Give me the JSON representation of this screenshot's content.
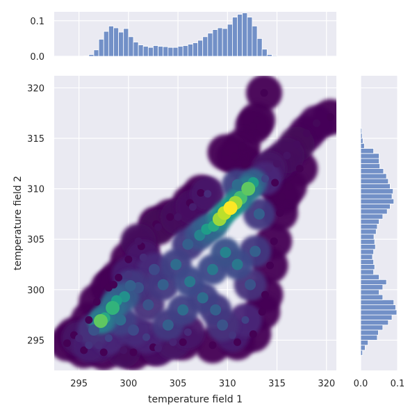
{
  "chart_data": {
    "type": "scatter",
    "subtype": "jointplot-density-scatter-with-marginal-histograms",
    "xlabel": "temperature field 1",
    "ylabel": "temperature field 2",
    "xlim": [
      292.5,
      321.0
    ],
    "ylim": [
      292.0,
      321.2
    ],
    "grid": true,
    "background": "#eaeaf2",
    "grid_color": "#ffffff",
    "hist_color": "#7290c7",
    "hist_edge_color": "#ffffff",
    "colormap": "viridis",
    "x_ticks": [
      {
        "value": 295,
        "label": "295"
      },
      {
        "value": 300,
        "label": "300"
      },
      {
        "value": 305,
        "label": "305"
      },
      {
        "value": 310,
        "label": "310"
      },
      {
        "value": 315,
        "label": "315"
      },
      {
        "value": 320,
        "label": "320"
      }
    ],
    "y_ticks": [
      {
        "value": 295,
        "label": "295"
      },
      {
        "value": 300,
        "label": "300"
      },
      {
        "value": 305,
        "label": "305"
      },
      {
        "value": 310,
        "label": "310"
      },
      {
        "value": 315,
        "label": "315"
      },
      {
        "value": 320,
        "label": "320"
      }
    ],
    "marginal_x": {
      "ticks": [
        {
          "value": 0.0,
          "label": "0.0"
        },
        {
          "value": 0.1,
          "label": "0.1"
        }
      ],
      "ylim": [
        0,
        0.125
      ],
      "bin_start": 295.5,
      "bin_width": 0.5,
      "densities": [
        0.001,
        0.005,
        0.018,
        0.048,
        0.07,
        0.085,
        0.08,
        0.068,
        0.078,
        0.055,
        0.04,
        0.032,
        0.028,
        0.025,
        0.03,
        0.028,
        0.027,
        0.025,
        0.025,
        0.028,
        0.03,
        0.034,
        0.038,
        0.045,
        0.055,
        0.065,
        0.075,
        0.08,
        0.078,
        0.09,
        0.11,
        0.118,
        0.122,
        0.11,
        0.085,
        0.05,
        0.02,
        0.005,
        0.002
      ]
    },
    "marginal_y": {
      "ticks": [
        {
          "value": 0.0,
          "label": "0.0"
        },
        {
          "value": 0.1,
          "label": "0.1"
        }
      ],
      "xlim": [
        0,
        0.1
      ],
      "bin_start": 293.5,
      "bin_width": 0.5,
      "densities": [
        0.005,
        0.012,
        0.02,
        0.045,
        0.048,
        0.06,
        0.075,
        0.085,
        0.098,
        0.095,
        0.09,
        0.06,
        0.05,
        0.06,
        0.07,
        0.05,
        0.035,
        0.038,
        0.035,
        0.032,
        0.035,
        0.04,
        0.038,
        0.036,
        0.042,
        0.045,
        0.05,
        0.06,
        0.072,
        0.08,
        0.09,
        0.085,
        0.088,
        0.08,
        0.075,
        0.07,
        0.062,
        0.052,
        0.05,
        0.05,
        0.035,
        0.01,
        0.006,
        0.004,
        0.003
      ]
    },
    "points": [
      {
        "x": 293.8,
        "y": 294.7,
        "d": 0.0
      },
      {
        "x": 295.0,
        "y": 295.2,
        "d": 0.1
      },
      {
        "x": 296.0,
        "y": 294.5,
        "d": 0.15
      },
      {
        "x": 296.5,
        "y": 296.0,
        "d": 0.25
      },
      {
        "x": 297.2,
        "y": 296.9,
        "d": 0.75
      },
      {
        "x": 297.6,
        "y": 297.2,
        "d": 0.6
      },
      {
        "x": 298.4,
        "y": 298.2,
        "d": 0.65
      },
      {
        "x": 298.8,
        "y": 298.9,
        "d": 0.55
      },
      {
        "x": 299.6,
        "y": 299.3,
        "d": 0.5
      },
      {
        "x": 300.2,
        "y": 300.4,
        "d": 0.3
      },
      {
        "x": 299.2,
        "y": 297.0,
        "d": 0.35
      },
      {
        "x": 300.5,
        "y": 296.0,
        "d": 0.22
      },
      {
        "x": 301.8,
        "y": 295.3,
        "d": 0.18
      },
      {
        "x": 303.0,
        "y": 294.2,
        "d": 0.08
      },
      {
        "x": 304.5,
        "y": 294.8,
        "d": 0.1
      },
      {
        "x": 306.0,
        "y": 295.8,
        "d": 0.12
      },
      {
        "x": 302.0,
        "y": 298.5,
        "d": 0.25
      },
      {
        "x": 303.5,
        "y": 300.5,
        "d": 0.3
      },
      {
        "x": 302.6,
        "y": 302.0,
        "d": 0.22
      },
      {
        "x": 301.5,
        "y": 303.2,
        "d": 0.12
      },
      {
        "x": 301.0,
        "y": 304.8,
        "d": 0.05
      },
      {
        "x": 303.0,
        "y": 306.2,
        "d": 0.03
      },
      {
        "x": 305.0,
        "y": 307.2,
        "d": 0.05
      },
      {
        "x": 306.0,
        "y": 304.5,
        "d": 0.3
      },
      {
        "x": 307.2,
        "y": 305.4,
        "d": 0.45
      },
      {
        "x": 307.9,
        "y": 306.0,
        "d": 0.55
      },
      {
        "x": 308.6,
        "y": 306.3,
        "d": 0.6
      },
      {
        "x": 309.2,
        "y": 307.0,
        "d": 0.85
      },
      {
        "x": 309.7,
        "y": 307.6,
        "d": 0.9
      },
      {
        "x": 310.3,
        "y": 308.1,
        "d": 1.0
      },
      {
        "x": 310.8,
        "y": 308.6,
        "d": 0.85
      },
      {
        "x": 311.3,
        "y": 309.1,
        "d": 0.7
      },
      {
        "x": 312.1,
        "y": 310.0,
        "d": 0.75
      },
      {
        "x": 312.6,
        "y": 310.6,
        "d": 0.55
      },
      {
        "x": 311.0,
        "y": 310.4,
        "d": 0.35
      },
      {
        "x": 308.0,
        "y": 309.5,
        "d": 0.12
      },
      {
        "x": 306.5,
        "y": 308.2,
        "d": 0.08
      },
      {
        "x": 304.8,
        "y": 302.5,
        "d": 0.35
      },
      {
        "x": 306.2,
        "y": 300.8,
        "d": 0.4
      },
      {
        "x": 307.5,
        "y": 299.2,
        "d": 0.35
      },
      {
        "x": 308.8,
        "y": 298.0,
        "d": 0.3
      },
      {
        "x": 309.5,
        "y": 296.5,
        "d": 0.25
      },
      {
        "x": 310.5,
        "y": 295.5,
        "d": 0.15
      },
      {
        "x": 311.8,
        "y": 297.0,
        "d": 0.2
      },
      {
        "x": 312.3,
        "y": 300.5,
        "d": 0.25
      },
      {
        "x": 312.8,
        "y": 303.8,
        "d": 0.3
      },
      {
        "x": 313.2,
        "y": 307.5,
        "d": 0.3
      },
      {
        "x": 313.8,
        "y": 311.0,
        "d": 0.2
      },
      {
        "x": 311.0,
        "y": 302.5,
        "d": 0.4
      },
      {
        "x": 309.8,
        "y": 303.7,
        "d": 0.45
      },
      {
        "x": 308.5,
        "y": 302.0,
        "d": 0.4
      },
      {
        "x": 305.5,
        "y": 298.0,
        "d": 0.35
      },
      {
        "x": 304.0,
        "y": 296.5,
        "d": 0.3
      },
      {
        "x": 298.0,
        "y": 295.2,
        "d": 0.2
      },
      {
        "x": 297.0,
        "y": 294.5,
        "d": 0.12
      },
      {
        "x": 299.5,
        "y": 294.0,
        "d": 0.05
      },
      {
        "x": 301.0,
        "y": 300.2,
        "d": 0.25
      },
      {
        "x": 300.0,
        "y": 301.5,
        "d": 0.15
      },
      {
        "x": 314.2,
        "y": 312.0,
        "d": 0.1
      },
      {
        "x": 315.0,
        "y": 312.5,
        "d": 0.05
      },
      {
        "x": 316.0,
        "y": 313.3,
        "d": 0.05
      },
      {
        "x": 317.0,
        "y": 314.4,
        "d": 0.03
      },
      {
        "x": 318.0,
        "y": 315.5,
        "d": 0.02
      },
      {
        "x": 319.0,
        "y": 316.5,
        "d": 0.02
      },
      {
        "x": 320.4,
        "y": 317.1,
        "d": 0.0
      },
      {
        "x": 313.7,
        "y": 319.5,
        "d": 0.0
      },
      {
        "x": 313.0,
        "y": 316.8,
        "d": 0.0
      },
      {
        "x": 312.6,
        "y": 316.2,
        "d": 0.0
      },
      {
        "x": 311.5,
        "y": 314.2,
        "d": 0.0
      },
      {
        "x": 311.8,
        "y": 312.5,
        "d": 0.0
      },
      {
        "x": 309.8,
        "y": 313.6,
        "d": 0.0
      },
      {
        "x": 310.7,
        "y": 313.2,
        "d": 0.0
      },
      {
        "x": 307.3,
        "y": 309.6,
        "d": 0.0
      },
      {
        "x": 306.2,
        "y": 308.6,
        "d": 0.0
      },
      {
        "x": 304.2,
        "y": 307.2,
        "d": 0.0
      },
      {
        "x": 302.8,
        "y": 306.5,
        "d": 0.0
      },
      {
        "x": 301.3,
        "y": 304.3,
        "d": 0.0
      },
      {
        "x": 300.0,
        "y": 303.0,
        "d": 0.0
      },
      {
        "x": 315.3,
        "y": 307.6,
        "d": 0.0
      },
      {
        "x": 315.5,
        "y": 309.2,
        "d": 0.0
      },
      {
        "x": 314.8,
        "y": 310.6,
        "d": 0.0
      },
      {
        "x": 317.3,
        "y": 312.0,
        "d": 0.0
      },
      {
        "x": 316.2,
        "y": 310.2,
        "d": 0.0
      },
      {
        "x": 314.7,
        "y": 304.8,
        "d": 0.0
      },
      {
        "x": 314.3,
        "y": 302.4,
        "d": 0.0
      },
      {
        "x": 313.8,
        "y": 299.5,
        "d": 0.0
      },
      {
        "x": 313.5,
        "y": 297.8,
        "d": 0.0
      },
      {
        "x": 312.6,
        "y": 295.6,
        "d": 0.0
      },
      {
        "x": 311.0,
        "y": 294.8,
        "d": 0.0
      },
      {
        "x": 308.5,
        "y": 294.5,
        "d": 0.0
      },
      {
        "x": 305.5,
        "y": 294.8,
        "d": 0.0
      },
      {
        "x": 302.5,
        "y": 294.3,
        "d": 0.0
      },
      {
        "x": 300.5,
        "y": 293.8,
        "d": 0.0
      },
      {
        "x": 297.5,
        "y": 293.8,
        "d": 0.0
      },
      {
        "x": 295.5,
        "y": 294.0,
        "d": 0.0
      },
      {
        "x": 294.5,
        "y": 295.5,
        "d": 0.0
      },
      {
        "x": 296.0,
        "y": 297.0,
        "d": 0.0
      },
      {
        "x": 296.8,
        "y": 298.8,
        "d": 0.0
      },
      {
        "x": 298.0,
        "y": 300.2,
        "d": 0.0
      },
      {
        "x": 299.0,
        "y": 301.2,
        "d": 0.0
      },
      {
        "x": 298.5,
        "y": 300.5,
        "d": 0.0
      }
    ]
  }
}
